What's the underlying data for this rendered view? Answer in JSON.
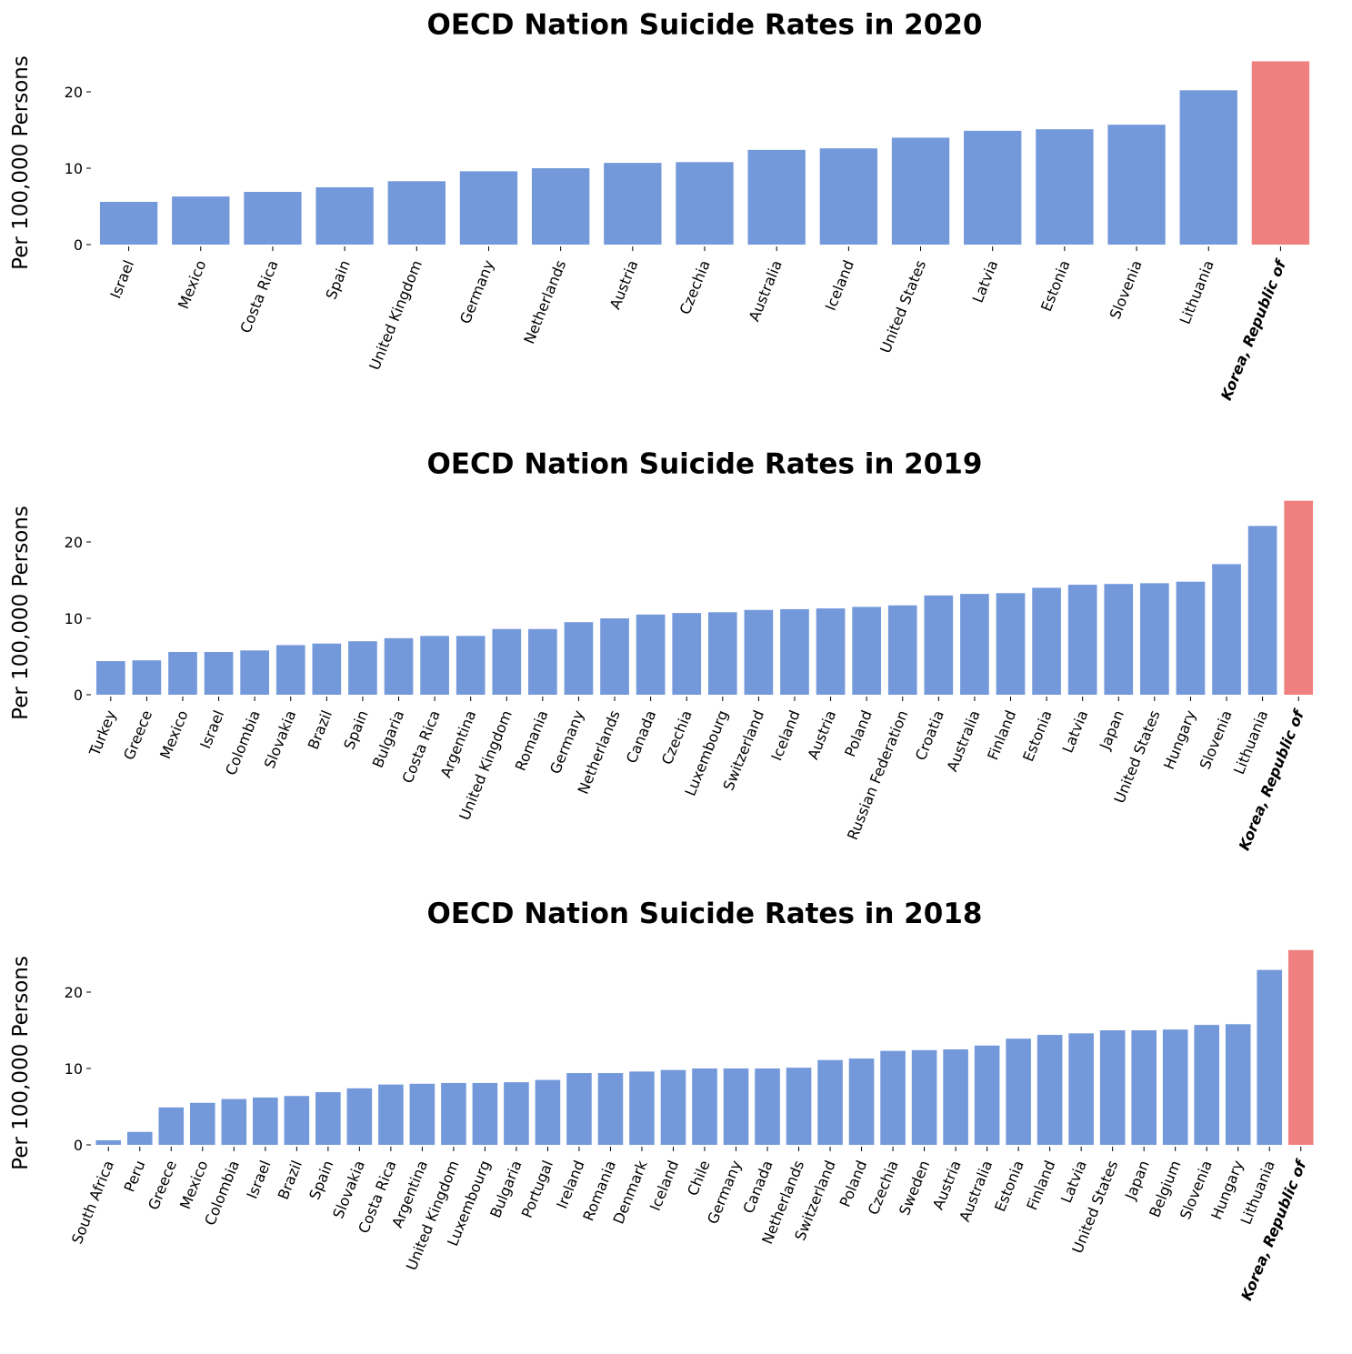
{
  "chart_data": [
    {
      "type": "bar",
      "title": "OECD Nation Suicide Rates in 2020",
      "xlabel": "",
      "ylabel": "Per 100,000 Persons",
      "yticks": [
        0,
        10,
        20
      ],
      "ylim": [
        0,
        24.0
      ],
      "grid": false,
      "highlight": "Korea, Republic of",
      "categories": [
        "Israel",
        "Mexico",
        "Costa Rica",
        "Spain",
        "United Kingdom",
        "Germany",
        "Netherlands",
        "Austria",
        "Czechia",
        "Australia",
        "Iceland",
        "United States",
        "Latvia",
        "Estonia",
        "Slovenia",
        "Lithuania",
        "Korea, Republic of"
      ],
      "values": [
        5.6,
        6.3,
        6.9,
        7.5,
        8.3,
        9.6,
        10.0,
        10.7,
        10.8,
        12.4,
        12.6,
        14.0,
        14.9,
        15.1,
        15.7,
        20.2,
        24.0
      ]
    },
    {
      "type": "bar",
      "title": "OECD Nation Suicide Rates in 2019",
      "xlabel": "",
      "ylabel": "Per 100,000 Persons",
      "yticks": [
        0,
        10,
        20
      ],
      "ylim": [
        0,
        25.4
      ],
      "grid": false,
      "highlight": "Korea, Republic of",
      "categories": [
        "Turkey",
        "Greece",
        "Mexico",
        "Israel",
        "Colombia",
        "Slovakia",
        "Brazil",
        "Spain",
        "Bulgaria",
        "Costa Rica",
        "Argentina",
        "United Kingdom",
        "Romania",
        "Germany",
        "Netherlands",
        "Canada",
        "Czechia",
        "Luxembourg",
        "Switzerland",
        "Iceland",
        "Austria",
        "Poland",
        "Russian Federation",
        "Croatia",
        "Australia",
        "Finland",
        "Estonia",
        "Latvia",
        "Japan",
        "United States",
        "Hungary",
        "Slovenia",
        "Lithuania",
        "Korea, Republic of"
      ],
      "values": [
        4.4,
        4.5,
        5.6,
        5.6,
        5.8,
        6.5,
        6.7,
        7.0,
        7.4,
        7.7,
        7.7,
        8.6,
        8.6,
        9.5,
        10.0,
        10.5,
        10.7,
        10.8,
        11.1,
        11.2,
        11.3,
        11.5,
        11.7,
        13.0,
        13.2,
        13.3,
        14.0,
        14.4,
        14.5,
        14.6,
        14.8,
        17.1,
        22.1,
        25.4
      ]
    },
    {
      "type": "bar",
      "title": "OECD Nation Suicide Rates in 2018",
      "xlabel": "",
      "ylabel": "Per 100,000 Persons",
      "yticks": [
        0,
        10,
        20
      ],
      "ylim": [
        0,
        25.5
      ],
      "grid": false,
      "highlight": "Korea, Republic of",
      "categories": [
        "South Africa",
        "Peru",
        "Greece",
        "Mexico",
        "Colombia",
        "Israel",
        "Brazil",
        "Spain",
        "Slovakia",
        "Costa Rica",
        "Argentina",
        "United Kingdom",
        "Luxembourg",
        "Bulgaria",
        "Portugal",
        "Ireland",
        "Romania",
        "Denmark",
        "Iceland",
        "Chile",
        "Germany",
        "Canada",
        "Netherlands",
        "Switzerland",
        "Poland",
        "Czechia",
        "Sweden",
        "Austria",
        "Australia",
        "Estonia",
        "Finland",
        "Latvia",
        "United States",
        "Japan",
        "Belgium",
        "Slovenia",
        "Hungary",
        "Lithuania",
        "Korea, Republic of"
      ],
      "values": [
        0.6,
        1.7,
        4.9,
        5.5,
        6.0,
        6.2,
        6.4,
        6.9,
        7.4,
        7.9,
        8.0,
        8.1,
        8.1,
        8.2,
        8.5,
        9.4,
        9.4,
        9.6,
        9.8,
        10.0,
        10.0,
        10.0,
        10.1,
        11.1,
        11.3,
        12.3,
        12.4,
        12.5,
        13.0,
        13.9,
        14.4,
        14.6,
        15.0,
        15.0,
        15.1,
        15.7,
        15.8,
        22.9,
        25.5
      ]
    }
  ],
  "colors": {
    "bar": "#7499DB",
    "highlight": "#F08080"
  }
}
